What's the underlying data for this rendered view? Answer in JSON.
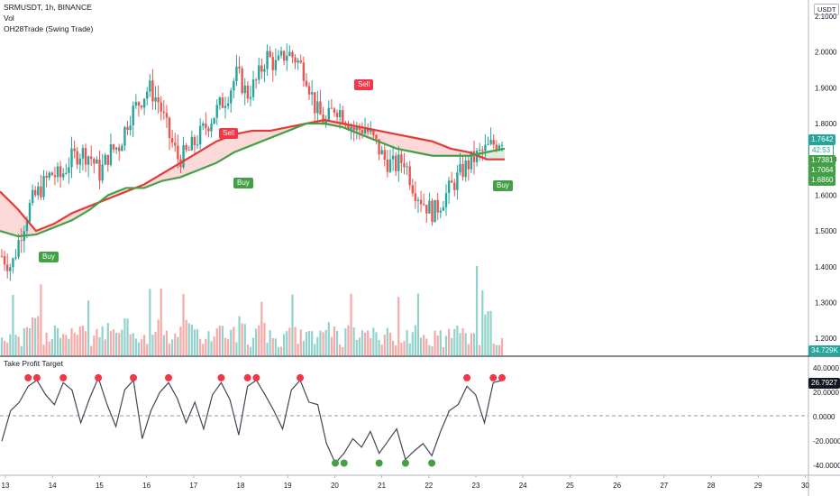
{
  "header": {
    "symbol_line": "SRMUSDT, 1h, BINANCE",
    "vol_label": "Vol",
    "indicator_label": "OH28Trade (Swing Trade)"
  },
  "currency_badge": "USDT",
  "price_axis": {
    "ticks": [
      "2.1000",
      "2.0000",
      "1.9000",
      "1.8000",
      "1.7000",
      "1.6000",
      "1.5000",
      "1.4000",
      "1.3000",
      "1.2000"
    ],
    "labels": [
      {
        "text": "1.7642",
        "kind": "last"
      },
      {
        "text": "42:53",
        "kind": "countdown"
      },
      {
        "text": "1.7381",
        "kind": "green"
      },
      {
        "text": "1.7064",
        "kind": "green"
      },
      {
        "text": "1.6860",
        "kind": "green"
      }
    ],
    "volume_label": "34.729K"
  },
  "oscillator": {
    "title": "Take Profit Target",
    "ticks": [
      "40.0000",
      "20.0000",
      "0.0000",
      "-20.0000",
      "-40.0000"
    ],
    "last_value": "26.7927"
  },
  "time_axis": {
    "ticks": [
      "13",
      "14",
      "15",
      "16",
      "17",
      "18",
      "19",
      "20",
      "21",
      "22",
      "23",
      "24",
      "25",
      "26",
      "27",
      "28",
      "29",
      "30"
    ]
  },
  "signals": [
    {
      "text": "Buy",
      "type": "buy"
    },
    {
      "text": "Sell",
      "type": "sell"
    },
    {
      "text": "Buy",
      "type": "buy"
    },
    {
      "text": "Sell",
      "type": "sell"
    },
    {
      "text": "Buy",
      "type": "buy"
    }
  ],
  "colors": {
    "up": "#26a69a",
    "down": "#ef5350",
    "buy": "#43a047",
    "sell": "#f23645",
    "fast_ma": "#43a047",
    "slow_ma": "#e53935",
    "last_label": "#26a69a"
  },
  "chart_data": {
    "type": "candlestick",
    "price_range": [
      1.15,
      2.12
    ],
    "oscillator_range": [
      -48,
      46
    ],
    "ma_fast": [
      1.5,
      1.485,
      1.49,
      1.51,
      1.53,
      1.56,
      1.6,
      1.62,
      1.62,
      1.64,
      1.65,
      1.67,
      1.69,
      1.72,
      1.74,
      1.76,
      1.78,
      1.8,
      1.8,
      1.79,
      1.77,
      1.75,
      1.73,
      1.72,
      1.71,
      1.71,
      1.71,
      1.72,
      1.73
    ],
    "ma_slow": [
      1.61,
      1.56,
      1.5,
      1.52,
      1.55,
      1.57,
      1.59,
      1.61,
      1.63,
      1.66,
      1.69,
      1.72,
      1.75,
      1.77,
      1.78,
      1.78,
      1.79,
      1.8,
      1.81,
      1.8,
      1.79,
      1.78,
      1.77,
      1.76,
      1.75,
      1.73,
      1.72,
      1.7,
      1.7
    ],
    "close_path": [
      1.43,
      1.4,
      1.5,
      1.58,
      1.62,
      1.66,
      1.65,
      1.7,
      1.72,
      1.71,
      1.66,
      1.72,
      1.74,
      1.82,
      1.86,
      1.9,
      1.86,
      1.77,
      1.7,
      1.72,
      1.76,
      1.8,
      1.84,
      1.88,
      1.94,
      1.88,
      1.92,
      1.99,
      1.96,
      2.0,
      1.98,
      1.94,
      1.84,
      1.8,
      1.85,
      1.82,
      1.78,
      1.79,
      1.75,
      1.7,
      1.68,
      1.7,
      1.62,
      1.58,
      1.55,
      1.59,
      1.63,
      1.67,
      1.7,
      1.72,
      1.74,
      1.76
    ],
    "take_profit_osc": [
      -20,
      5,
      12,
      25,
      30,
      18,
      10,
      28,
      22,
      -5,
      15,
      32,
      10,
      -8,
      22,
      30,
      -18,
      5,
      20,
      28,
      15,
      -5,
      12,
      -10,
      18,
      28,
      14,
      -15,
      25,
      30,
      18,
      5,
      -10,
      22,
      30,
      12,
      10,
      -22,
      -38,
      -30,
      -18,
      -25,
      -12,
      -30,
      -20,
      -10,
      -35,
      -28,
      -22,
      -32,
      -12,
      5,
      10,
      25,
      18,
      -5,
      28,
      30
    ],
    "volume_rel": [
      0.4,
      0.3,
      0.5,
      0.7,
      0.35,
      0.5,
      0.3,
      0.6,
      0.4,
      0.3,
      0.5,
      0.4,
      0.8,
      0.4,
      0.3,
      0.7,
      0.5,
      0.4,
      0.9,
      0.45,
      0.35,
      0.5,
      0.6,
      0.4,
      0.8,
      0.3,
      0.5,
      0.45,
      0.3,
      0.6,
      0.4,
      0.35,
      0.5,
      0.6,
      0.3,
      0.4,
      0.45,
      0.35,
      0.3,
      0.4,
      0.35,
      0.3,
      0.4,
      0.25,
      0.35,
      0.3,
      0.5,
      0.35,
      0.3,
      0.9,
      0.3,
      0.2
    ]
  }
}
